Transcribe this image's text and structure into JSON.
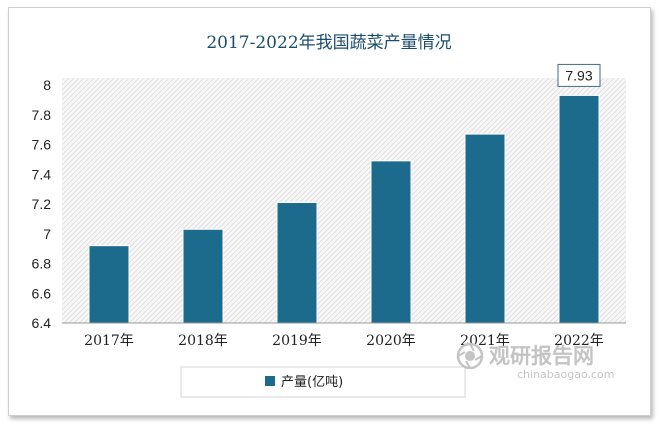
{
  "chart_data": {
    "type": "bar",
    "title": "2017-2022年我国蔬菜产量情况",
    "categories": [
      "2017年",
      "2018年",
      "2019年",
      "2020年",
      "2021年",
      "2022年"
    ],
    "series": [
      {
        "name": "产量(亿吨)",
        "values": [
          6.92,
          7.03,
          7.21,
          7.49,
          7.67,
          7.93
        ],
        "color": "#1c6a8c"
      }
    ],
    "data_labels": [
      null,
      null,
      null,
      null,
      null,
      "7.93"
    ],
    "ylim": [
      6.4,
      8.0
    ],
    "yticks": [
      "6.4",
      "6.6",
      "6.8",
      "7",
      "7.2",
      "7.4",
      "7.6",
      "7.8",
      "8"
    ],
    "grid": false,
    "background": "diagonal-hatch",
    "legend_position": "bottom"
  },
  "watermark": {
    "cn": "观研报告网",
    "en": "chinabaogao.com",
    "icon": "watermark-logo-icon"
  }
}
